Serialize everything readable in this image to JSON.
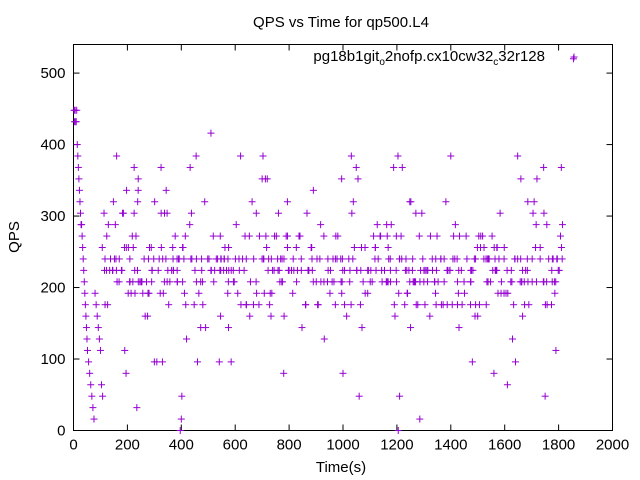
{
  "chart_data": {
    "type": "scatter",
    "title": "QPS vs Time for qp500.L4",
    "xlabel": "Time(s)",
    "ylabel": "QPS",
    "xlim": [
      0,
      2000
    ],
    "ylim": [
      0,
      540
    ],
    "x_ticks": [
      "0",
      "200",
      "400",
      "600",
      "800",
      "1000",
      "1200",
      "1400",
      "1600",
      "1800",
      "2000"
    ],
    "y_ticks": [
      "0",
      "100",
      "200",
      "300",
      "400",
      "500"
    ],
    "grid": false,
    "legend": {
      "placement": "top-right",
      "entries": [
        {
          "name_main": "pg18b1git",
          "name_sub1": "o",
          "name_mid": "2nofp.cx10cw32",
          "name_sub2": "c",
          "name_end": "32r128",
          "color": "#9400d3",
          "marker": "plus"
        }
      ]
    },
    "series": [
      {
        "name": "pg18b1git_o2nofp.cx10cw32_c32r128",
        "color": "#9400d3",
        "marker": "plus",
        "levels": [
          16,
          32,
          48,
          64,
          80,
          96,
          112,
          128,
          144,
          160,
          176,
          192,
          208,
          224,
          240,
          256,
          272,
          288,
          304,
          320,
          336,
          352,
          368,
          384,
          400,
          416,
          432,
          448
        ],
        "dense_levels": [
          208,
          224,
          240
        ],
        "medium_levels": [
          176,
          192,
          256,
          272
        ],
        "sparse_levels": [
          144,
          160,
          288,
          304,
          320
        ],
        "rare_levels": [
          96,
          112,
          128,
          336,
          352,
          368,
          384
        ],
        "startup_points": [
          [
            2,
            448
          ],
          [
            4,
            432
          ],
          [
            6,
            448
          ],
          [
            8,
            432
          ],
          [
            10,
            432
          ],
          [
            12,
            448
          ],
          [
            14,
            400
          ],
          [
            16,
            384
          ],
          [
            18,
            368
          ],
          [
            20,
            352
          ],
          [
            22,
            336
          ],
          [
            24,
            320
          ],
          [
            26,
            304
          ],
          [
            28,
            288
          ],
          [
            30,
            288
          ],
          [
            32,
            272
          ],
          [
            34,
            256
          ],
          [
            36,
            240
          ],
          [
            38,
            224
          ],
          [
            40,
            208
          ],
          [
            42,
            192
          ],
          [
            44,
            176
          ],
          [
            46,
            160
          ],
          [
            48,
            144
          ],
          [
            50,
            128
          ],
          [
            52,
            112
          ],
          [
            56,
            96
          ],
          [
            60,
            80
          ],
          [
            64,
            64
          ],
          [
            68,
            48
          ],
          [
            72,
            32
          ],
          [
            76,
            16
          ],
          [
            80,
            192
          ],
          [
            84,
            176
          ],
          [
            88,
            160
          ],
          [
            92,
            144
          ],
          [
            96,
            128
          ],
          [
            100,
            112
          ],
          [
            104,
            64
          ],
          [
            108,
            48
          ]
        ],
        "outliers": [
          [
            396,
            0
          ],
          [
            400,
            16
          ],
          [
            402,
            48
          ],
          [
            1205,
            0
          ],
          [
            1210,
            48
          ],
          [
            1285,
            16
          ],
          [
            235,
            32
          ],
          [
            510,
            416
          ],
          [
            1400,
            384
          ],
          [
            1855,
            520
          ],
          [
            620,
            384
          ],
          [
            700,
            352
          ],
          [
            890,
            336
          ],
          [
            995,
            352
          ],
          [
            1220,
            368
          ],
          [
            1660,
            352
          ],
          [
            1810,
            368
          ],
          [
            195,
            80
          ],
          [
            585,
            96
          ],
          [
            780,
            80
          ],
          [
            1000,
            80
          ],
          [
            1060,
            48
          ],
          [
            1480,
            96
          ],
          [
            1560,
            80
          ],
          [
            1610,
            64
          ],
          [
            1640,
            96
          ],
          [
            1750,
            48
          ],
          [
            1790,
            112
          ],
          [
            160,
            384
          ],
          [
            225,
            368
          ],
          [
            455,
            384
          ],
          [
            240,
            336
          ],
          [
            300,
            96
          ],
          [
            330,
            96
          ],
          [
            460,
            96
          ]
        ],
        "time_range": [
          0,
          1810
        ],
        "sample_step": 10
      }
    ]
  }
}
